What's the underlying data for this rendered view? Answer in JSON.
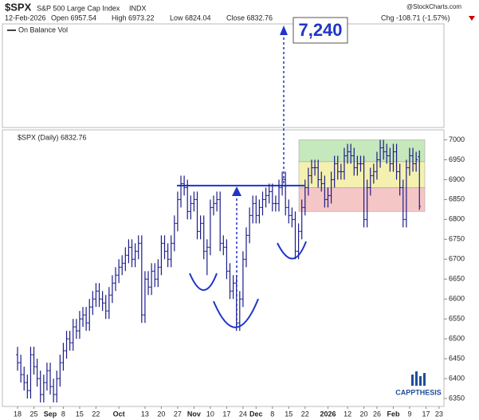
{
  "header": {
    "symbol": "$SPX",
    "name": "S&P 500 Large Cap Index",
    "exchange": "INDX",
    "date": "12-Feb-2026",
    "open": "Open 6957.54",
    "high": "High 6973.22",
    "low": "Low 6824.04",
    "close": "Close 6832.76",
    "change": "Chg -108.71 (-1.57%)",
    "credit": "@StockCharts.com"
  },
  "obv_panel": {
    "label": "On Balance Vol"
  },
  "logo": "CAPPTHESIS",
  "chart_data": {
    "type": "ohlc",
    "title": "$SPX (Daily) 6832.76",
    "annotation": "7,240",
    "categories": [
      "18",
      null,
      null,
      null,
      null,
      "25",
      null,
      null,
      null,
      null,
      "Sep",
      null,
      null,
      null,
      "8",
      null,
      null,
      null,
      null,
      "15",
      null,
      null,
      null,
      null,
      "22",
      null,
      null,
      null,
      null,
      null,
      null,
      "Oct",
      null,
      null,
      null,
      null,
      null,
      null,
      null,
      "13",
      null,
      null,
      null,
      null,
      "20",
      null,
      null,
      null,
      null,
      "27",
      null,
      null,
      null,
      null,
      "Nov",
      null,
      null,
      null,
      null,
      "10",
      null,
      null,
      null,
      null,
      "17",
      null,
      null,
      null,
      null,
      "24",
      null,
      null,
      null,
      "Dec",
      null,
      null,
      null,
      null,
      "8",
      null,
      null,
      null,
      null,
      "15",
      null,
      null,
      null,
      null,
      "22",
      null,
      null,
      null,
      null,
      null,
      null,
      "2026",
      null,
      null,
      null,
      null,
      null,
      "12",
      null,
      null,
      null,
      null,
      "20",
      null,
      null,
      null,
      "26",
      null,
      null,
      null,
      null,
      "Feb",
      null,
      null,
      null,
      null,
      "9",
      null,
      null,
      null,
      null,
      "17",
      null,
      null,
      null,
      "23",
      null
    ],
    "series": [
      {
        "name": "$SPX",
        "color": "#1c1c8a",
        "open": [
          6460,
          6440,
          6410,
          6390,
          6370,
          6460,
          6430,
          6400,
          6360,
          6390,
          6420,
          6380,
          6360,
          6400,
          6440,
          6470,
          6500,
          6490,
          6530,
          6520,
          6550,
          6560,
          6540,
          6580,
          6600,
          6620,
          6600,
          6590,
          6570,
          6610,
          6640,
          6660,
          6680,
          6690,
          6710,
          6730,
          6700,
          6720,
          6740,
          6560,
          6650,
          6630,
          6670,
          6650,
          6680,
          6740,
          6720,
          6700,
          6740,
          6790,
          6850,
          6890,
          6880,
          6820,
          6840,
          6850,
          6770,
          6790,
          6720,
          6730,
          6830,
          6840,
          6850,
          6740,
          6730,
          6670,
          6620,
          6640,
          6540,
          6600,
          6700,
          6760,
          6810,
          6840,
          6810,
          6830,
          6850,
          6860,
          6870,
          6840,
          6840,
          6880,
          6900,
          6830,
          6810,
          6800,
          6720,
          6770,
          6830,
          6880,
          6910,
          6930,
          6930,
          6900,
          6890,
          6850,
          6860,
          6900,
          6940,
          6920,
          6920,
          6960,
          6970,
          6960,
          6930,
          6940,
          6940,
          6800,
          6880,
          6910,
          6920,
          6950,
          6980,
          6970,
          6960,
          6940,
          6970,
          6920,
          6880,
          6800,
          6930,
          6960,
          6940,
          6957.54,
          null,
          null,
          null,
          null,
          null,
          null,
          null
        ],
        "high": [
          6480,
          6460,
          6430,
          6410,
          6480,
          6480,
          6450,
          6420,
          6410,
          6440,
          6440,
          6400,
          6420,
          6460,
          6490,
          6520,
          6520,
          6550,
          6550,
          6570,
          6580,
          6580,
          6600,
          6620,
          6640,
          6640,
          6620,
          6610,
          6630,
          6660,
          6680,
          6700,
          6710,
          6730,
          6750,
          6750,
          6740,
          6760,
          6760,
          6670,
          6670,
          6690,
          6690,
          6700,
          6760,
          6760,
          6740,
          6760,
          6810,
          6870,
          6910,
          6910,
          6900,
          6860,
          6870,
          6870,
          6810,
          6810,
          6750,
          6850,
          6860,
          6870,
          6870,
          6760,
          6750,
          6690,
          6660,
          6660,
          6620,
          6720,
          6780,
          6830,
          6860,
          6860,
          6850,
          6870,
          6880,
          6890,
          6890,
          6860,
          6900,
          6920,
          6920,
          6850,
          6830,
          6820,
          6790,
          6850,
          6900,
          6930,
          6950,
          6950,
          6950,
          6920,
          6910,
          6880,
          6920,
          6960,
          6960,
          6940,
          6980,
          6990,
          6990,
          6980,
          6960,
          6960,
          6960,
          6900,
          6930,
          6940,
          6970,
          7000,
          7000,
          6990,
          6980,
          6990,
          6990,
          6940,
          6900,
          6950,
          6980,
          6980,
          6970,
          6973.22,
          null,
          null,
          null,
          null,
          null,
          null,
          null
        ],
        "low": [
          6420,
          6390,
          6370,
          6350,
          6350,
          6410,
          6380,
          6340,
          6340,
          6370,
          6360,
          6340,
          6340,
          6380,
          6420,
          6450,
          6470,
          6470,
          6500,
          6500,
          6530,
          6520,
          6520,
          6560,
          6580,
          6580,
          6570,
          6550,
          6550,
          6590,
          6620,
          6640,
          6660,
          6670,
          6690,
          6680,
          6680,
          6700,
          6540,
          6540,
          6610,
          6610,
          6630,
          6630,
          6660,
          6700,
          6680,
          6680,
          6720,
          6770,
          6830,
          6860,
          6800,
          6800,
          6820,
          6750,
          6750,
          6700,
          6660,
          6710,
          6810,
          6820,
          6720,
          6710,
          6650,
          6600,
          6600,
          6520,
          6520,
          6580,
          6680,
          6740,
          6790,
          6790,
          6790,
          6810,
          6830,
          6840,
          6820,
          6820,
          6820,
          6860,
          6810,
          6790,
          6780,
          6700,
          6700,
          6750,
          6810,
          6860,
          6890,
          6910,
          6880,
          6870,
          6830,
          6830,
          6840,
          6880,
          6900,
          6900,
          6900,
          6940,
          6940,
          6910,
          6910,
          6920,
          6780,
          6780,
          6860,
          6890,
          6900,
          6930,
          6950,
          6940,
          6920,
          6920,
          6900,
          6860,
          6780,
          6780,
          6910,
          6920,
          6920,
          6824.04,
          null,
          null,
          null,
          null,
          null,
          null,
          null
        ],
        "close": [
          6440,
          6410,
          6390,
          6370,
          6460,
          6430,
          6400,
          6360,
          6390,
          6420,
          6380,
          6360,
          6400,
          6440,
          6470,
          6500,
          6490,
          6530,
          6520,
          6550,
          6560,
          6540,
          6580,
          6600,
          6620,
          6600,
          6590,
          6570,
          6610,
          6640,
          6660,
          6680,
          6690,
          6710,
          6730,
          6700,
          6720,
          6740,
          6560,
          6650,
          6630,
          6670,
          6650,
          6680,
          6740,
          6720,
          6700,
          6740,
          6790,
          6850,
          6890,
          6880,
          6820,
          6840,
          6850,
          6770,
          6790,
          6720,
          6730,
          6830,
          6840,
          6850,
          6740,
          6730,
          6670,
          6620,
          6640,
          6540,
          6600,
          6700,
          6760,
          6810,
          6840,
          6810,
          6830,
          6850,
          6860,
          6870,
          6840,
          6840,
          6880,
          6900,
          6830,
          6810,
          6800,
          6720,
          6770,
          6830,
          6880,
          6910,
          6930,
          6930,
          6900,
          6890,
          6850,
          6860,
          6900,
          6940,
          6920,
          6920,
          6960,
          6970,
          6960,
          6930,
          6940,
          6940,
          6800,
          6880,
          6910,
          6920,
          6950,
          6980,
          6970,
          6960,
          6940,
          6970,
          6920,
          6880,
          6800,
          6930,
          6960,
          6940,
          6950,
          6832.76,
          null,
          null,
          null,
          null,
          null,
          null,
          null
        ]
      }
    ],
    "ylim": [
      6330,
      7025
    ],
    "yticks": [
      6350,
      6400,
      6450,
      6500,
      6550,
      6600,
      6650,
      6700,
      6750,
      6800,
      6850,
      6900,
      6950,
      7000
    ],
    "grid": false,
    "neckline": 6885,
    "zones": [
      {
        "from": 6945,
        "to": 7000,
        "color": "#c5e8bd"
      },
      {
        "from": 6880,
        "to": 6945,
        "color": "#f4f1b0"
      },
      {
        "from": 6820,
        "to": 6880,
        "color": "#f5c6c6"
      }
    ]
  }
}
